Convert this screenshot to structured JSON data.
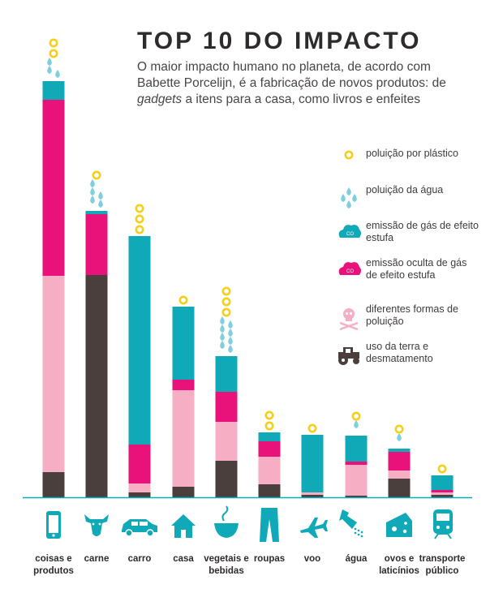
{
  "title": "TOP 10 DO IMPACTO",
  "subtitle": {
    "line1": "O maior impacto humano no planeta, de acordo com",
    "line2": "Babette Porcelijn, é a fabricação de novos produtos: de",
    "line3_italic": "gadgets",
    "line3_rest": " a itens para a casa, como livros e enfeites"
  },
  "colors": {
    "land": "#4a3f3d",
    "pollution": "#f5aec4",
    "hidden_ghg": "#e8127a",
    "ghg": "#0fa9b8",
    "water": "#7fd0dc",
    "plastic": "#f5cf1c",
    "axis": "#0fa9b8"
  },
  "legend": [
    {
      "key": "plastic",
      "icon": "plastic-ring-icon",
      "label": "poluição por plástico"
    },
    {
      "key": "water",
      "icon": "water-drops-icon",
      "label": "poluição da água"
    },
    {
      "key": "ghg",
      "icon": "co2-cloud-icon",
      "label": "emissão de gás de efeito estufa"
    },
    {
      "key": "hidden_ghg",
      "icon": "co2-cloud-pink-icon",
      "label": "emissão oculta de gás de efeito estufa"
    },
    {
      "key": "pollution",
      "icon": "skull-crossbones-icon",
      "label": "diferentes formas de poluição"
    },
    {
      "key": "land",
      "icon": "tractor-icon",
      "label": "uso da terra e desmatamento"
    }
  ],
  "chart_data": {
    "type": "bar",
    "stacked": true,
    "categories": [
      "coisas e produtos",
      "carne",
      "carro",
      "casa",
      "vegetais e bebidas",
      "roupas",
      "voo",
      "água",
      "ovos e laticínios",
      "transporte público"
    ],
    "icons": [
      "smartphone-icon",
      "cow-icon",
      "car-icon",
      "house-icon",
      "bowl-icon",
      "jeans-icon",
      "airplane-icon",
      "shower-icon",
      "cheese-icon",
      "train-icon"
    ],
    "series": [
      {
        "name": "uso da terra e desmatamento",
        "key": "land",
        "values": [
          31,
          274,
          6,
          13,
          45,
          16,
          3,
          2,
          23,
          3
        ]
      },
      {
        "name": "diferentes formas de poluição",
        "key": "pollution",
        "values": [
          242,
          0,
          11,
          119,
          48,
          34,
          3,
          38,
          10,
          3
        ]
      },
      {
        "name": "emissão oculta de gás de efeito estufa",
        "key": "hidden_ghg",
        "values": [
          217,
          75,
          48,
          13,
          37,
          19,
          0,
          4,
          23,
          3
        ]
      },
      {
        "name": "emissão de gás de efeito estufa",
        "key": "ghg",
        "values": [
          23,
          4,
          257,
          90,
          44,
          11,
          71,
          32,
          4,
          18
        ]
      }
    ],
    "water_drops": [
      3,
      5,
      0,
      0,
      8,
      0,
      0,
      1,
      1,
      0
    ],
    "plastic_rings": [
      2,
      1,
      3,
      1,
      3,
      2,
      1,
      1,
      1,
      1
    ],
    "ylim": [
      0,
      520
    ],
    "grid": false,
    "legend_position": "right"
  }
}
